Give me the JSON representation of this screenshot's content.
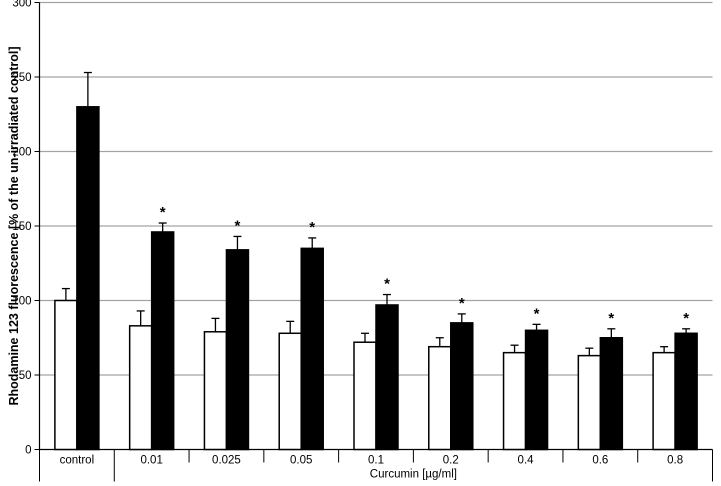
{
  "chart_data": {
    "type": "bar",
    "title": "",
    "ylabel": "Rhodamine 123 fluorescence [% of the un-irradiated control]",
    "xlabel": "Curcumin [µg/ml]",
    "categories": [
      "control",
      "0.01",
      "0.025",
      "0.05",
      "0.1",
      "0.2",
      "0.4",
      "0.6",
      "0.8"
    ],
    "series": [
      {
        "name": "open-white-bars",
        "fill": "#ffffff",
        "values": [
          100,
          83,
          79,
          78,
          72,
          69,
          65,
          63,
          65
        ],
        "errors": [
          8,
          10,
          9,
          8,
          6,
          6,
          5,
          5,
          4
        ],
        "asterisks": [
          false,
          false,
          false,
          false,
          false,
          false,
          false,
          false,
          false
        ]
      },
      {
        "name": "filled-black-bars",
        "fill": "#000000",
        "values": [
          230,
          146,
          134,
          135,
          97,
          85,
          80,
          75,
          78
        ],
        "errors": [
          23,
          6,
          9,
          7,
          7,
          6,
          4,
          6,
          3
        ],
        "asterisks": [
          false,
          true,
          true,
          true,
          true,
          true,
          true,
          true,
          true
        ]
      }
    ],
    "ylim": [
      0,
      300
    ],
    "ytick_interval": 50,
    "yticks": [
      "0",
      "50",
      "100",
      "150",
      "200",
      "250",
      "300"
    ],
    "grid": true,
    "legend": "none",
    "significance_marker": "*",
    "x_group_label_spans_categories": [
      "0.01",
      "0.8"
    ],
    "colors": {
      "bar_open": "#ffffff",
      "bar_filled": "#000000",
      "gridline": "#a3a3a3",
      "axis": "#000000",
      "text": "#000000"
    }
  }
}
